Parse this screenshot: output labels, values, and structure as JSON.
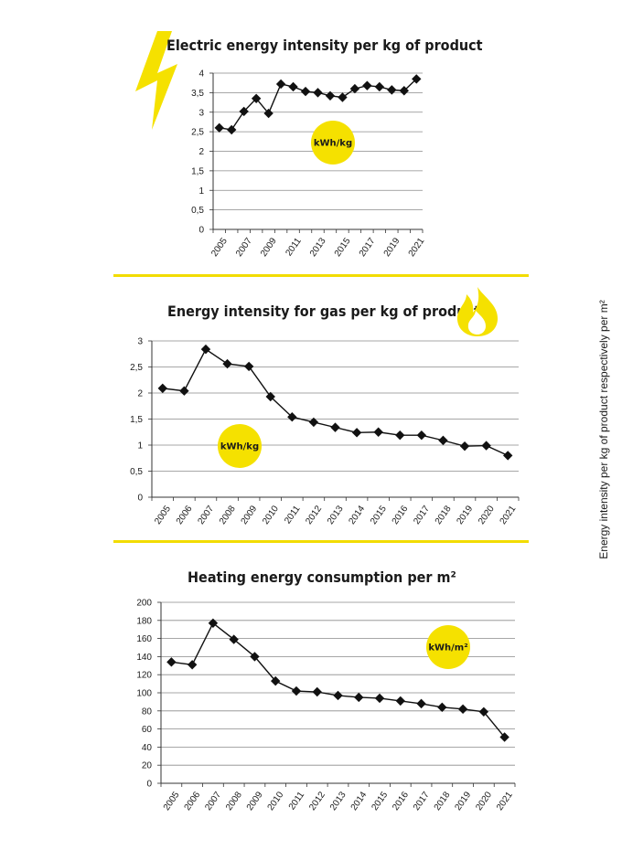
{
  "side_label": "Energy intensity per kg of product respectively per m²",
  "accent": "#f5e100",
  "chart_data": [
    {
      "type": "line",
      "title": "Electric energy intensity per kg of product",
      "unit_badge": "kWh/kg",
      "icon": "lightning-bolt-icon",
      "x": [
        2005,
        2006,
        2007,
        2008,
        2009,
        2010,
        2011,
        2012,
        2013,
        2014,
        2015,
        2016,
        2017,
        2018,
        2019,
        2020,
        2021
      ],
      "x_tick_labels": [
        "2005",
        "2007",
        "2009",
        "2011",
        "2013",
        "2015",
        "2017",
        "2019",
        "2021"
      ],
      "values": [
        2.6,
        2.55,
        3.02,
        3.35,
        2.97,
        3.72,
        3.65,
        3.53,
        3.5,
        3.42,
        3.38,
        3.6,
        3.68,
        3.65,
        3.57,
        3.55,
        3.85
      ],
      "y_tick_labels": [
        "0",
        "0,5",
        "1",
        "1,5",
        "2",
        "2,5",
        "3",
        "3,5",
        "4"
      ],
      "ylim": [
        0,
        4
      ],
      "grid": true
    },
    {
      "type": "line",
      "title": "Energy intensity for gas per kg of product",
      "unit_badge": "kWh/kg",
      "icon": "flame-icon",
      "x": [
        2005,
        2006,
        2007,
        2008,
        2009,
        2010,
        2011,
        2012,
        2013,
        2014,
        2015,
        2016,
        2017,
        2018,
        2019,
        2020,
        2021
      ],
      "x_tick_labels": [
        "2005",
        "2006",
        "2007",
        "2008",
        "2009",
        "2010",
        "2011",
        "2012",
        "2013",
        "2014",
        "2015",
        "2016",
        "2017",
        "2018",
        "2019",
        "2020",
        "2021"
      ],
      "values": [
        2.09,
        2.04,
        2.84,
        2.56,
        2.51,
        1.93,
        1.54,
        1.44,
        1.34,
        1.24,
        1.25,
        1.19,
        1.19,
        1.09,
        0.98,
        0.99,
        0.8
      ],
      "y_tick_labels": [
        "0",
        "0,5",
        "1",
        "1,5",
        "2",
        "2,5",
        "3"
      ],
      "ylim": [
        0,
        3
      ],
      "grid": true
    },
    {
      "type": "line",
      "title": "Heating energy consumption per m²",
      "unit_badge": "kWh/m²",
      "x": [
        2005,
        2006,
        2007,
        2008,
        2009,
        2010,
        2011,
        2012,
        2013,
        2014,
        2015,
        2016,
        2017,
        2018,
        2019,
        2020,
        2021
      ],
      "x_tick_labels": [
        "2005",
        "2006",
        "2007",
        "2008",
        "2009",
        "2010",
        "2011",
        "2012",
        "2013",
        "2014",
        "2015",
        "2016",
        "2017",
        "2018",
        "2019",
        "2020",
        "2021"
      ],
      "values": [
        134,
        131,
        177,
        159,
        140,
        113,
        102,
        101,
        97,
        95,
        94,
        91,
        88,
        84,
        82,
        79,
        51
      ],
      "y_tick_labels": [
        "0",
        "20",
        "40",
        "60",
        "80",
        "100",
        "120",
        "140",
        "160",
        "180",
        "200"
      ],
      "ylim": [
        0,
        200
      ],
      "grid": true
    }
  ]
}
